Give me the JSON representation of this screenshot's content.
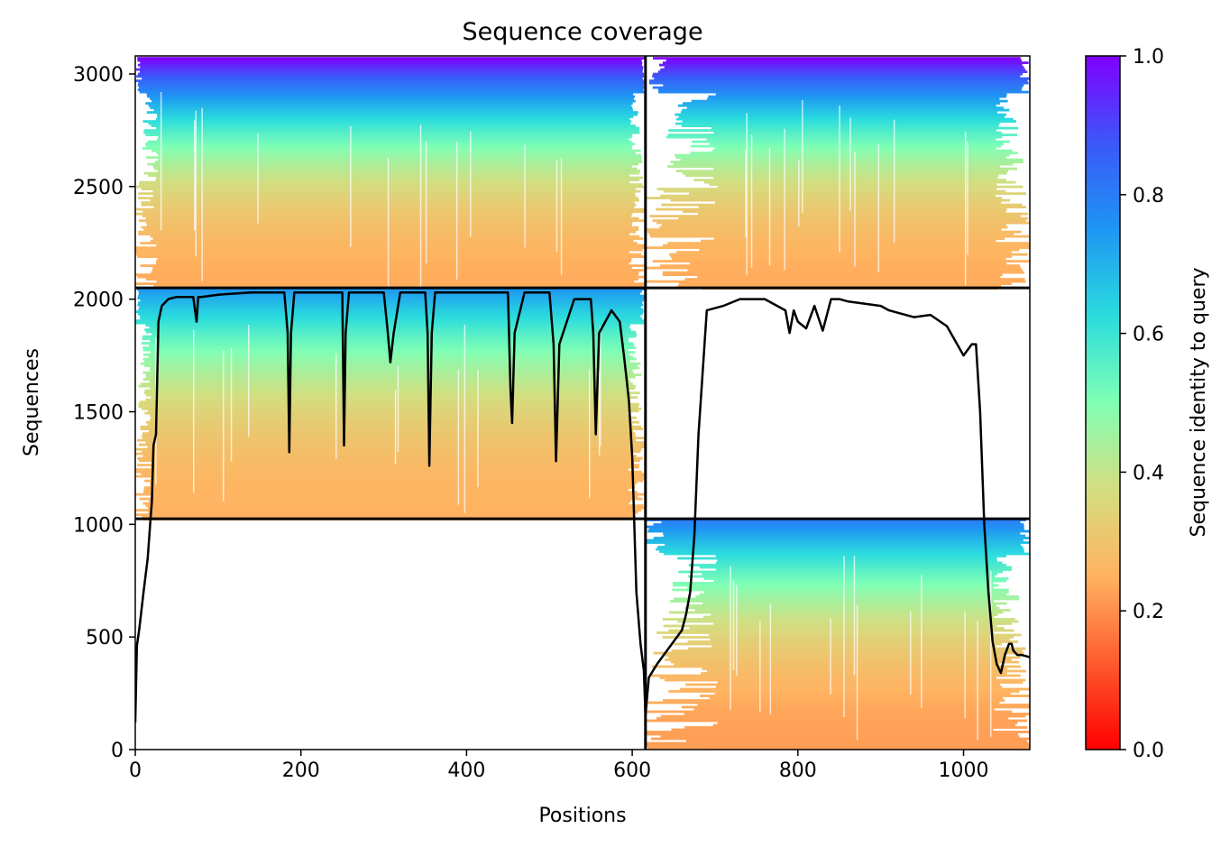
{
  "chart_data": {
    "type": "heatmap",
    "title": "Sequence coverage",
    "xlabel": "Positions",
    "ylabel": "Sequences",
    "xlim": [
      0,
      1080
    ],
    "ylim": [
      0,
      3080
    ],
    "xticks": [
      0,
      200,
      400,
      600,
      800,
      1000
    ],
    "yticks": [
      0,
      500,
      1000,
      1500,
      2000,
      2500,
      3000
    ],
    "grid": false,
    "colormap": "rainbow_r",
    "colorbar": {
      "label": "Sequence identity to query",
      "range": [
        0.0,
        1.0
      ],
      "ticks": [
        0.0,
        0.2,
        0.4,
        0.6,
        0.8,
        1.0
      ],
      "stops": [
        {
          "v": 0.0,
          "color": "#ff0000"
        },
        {
          "v": 0.125,
          "color": "#ff5a2e"
        },
        {
          "v": 0.25,
          "color": "#ffb360"
        },
        {
          "v": 0.375,
          "color": "#d4dd80"
        },
        {
          "v": 0.5,
          "color": "#80ffb4"
        },
        {
          "v": 0.625,
          "color": "#2adcdd"
        },
        {
          "v": 0.75,
          "color": "#1e96f3"
        },
        {
          "v": 0.875,
          "color": "#3c57f9"
        },
        {
          "v": 1.0,
          "color": "#8000ff"
        }
      ]
    },
    "chain_boundary_x": 616,
    "row_boundaries_y": [
      1025,
      2050
    ],
    "blocks": [
      {
        "name": "chain-A-top",
        "x0": 0,
        "x1": 616,
        "y0": 2050,
        "y1": 3075,
        "core_x0": 28,
        "core_x1": 596,
        "identity_bottom": 0.24,
        "identity_top": 1.0
      },
      {
        "name": "chain-B-top",
        "x0": 616,
        "x1": 1080,
        "y0": 2050,
        "y1": 3075,
        "core_x0": 703,
        "core_x1": 1038,
        "identity_bottom": 0.24,
        "identity_top": 1.0
      },
      {
        "name": "chain-A-middle",
        "x0": 0,
        "x1": 616,
        "y0": 1025,
        "y1": 2050,
        "core_x0": 20,
        "core_x1": 595,
        "identity_bottom": 0.25,
        "identity_top": 0.75
      },
      {
        "name": "chain-B-bottom",
        "x0": 616,
        "x1": 1080,
        "y0": 0,
        "y1": 1025,
        "core_x0": 703,
        "core_x1": 1035,
        "identity_bottom": 0.22,
        "identity_top": 0.8
      }
    ],
    "series": [
      {
        "color": "#000000",
        "x": [
          0,
          2,
          5,
          10,
          15,
          18,
          20,
          22,
          25,
          28,
          32,
          40,
          50,
          60,
          70,
          74,
          76,
          80,
          100,
          140,
          180,
          184,
          186,
          188,
          192,
          200,
          230,
          250,
          252,
          254,
          258,
          280,
          300,
          305,
          308,
          312,
          320,
          350,
          353,
          355,
          358,
          362,
          380,
          420,
          450,
          453,
          455,
          458,
          470,
          500,
          505,
          508,
          512,
          530,
          550,
          553,
          556,
          560,
          575,
          585,
          590,
          593,
          596,
          600,
          605,
          610,
          614,
          616,
          620,
          630,
          640,
          650,
          660,
          665,
          670,
          675,
          680,
          690,
          700,
          710,
          730,
          760,
          785,
          790,
          795,
          800,
          810,
          820,
          830,
          840,
          850,
          860,
          880,
          900,
          910,
          920,
          940,
          960,
          980,
          1000,
          1010,
          1015,
          1020,
          1025,
          1030,
          1035,
          1040,
          1045,
          1050,
          1055,
          1058,
          1060,
          1065,
          1070,
          1080
        ],
        "y": [
          120,
          460,
          540,
          700,
          850,
          1000,
          1100,
          1350,
          1400,
          1900,
          1970,
          2000,
          2010,
          2010,
          2010,
          1900,
          2010,
          2010,
          2020,
          2030,
          2030,
          1850,
          1320,
          1850,
          2030,
          2030,
          2030,
          2030,
          1350,
          1850,
          2030,
          2030,
          2030,
          1850,
          1720,
          1850,
          2030,
          2030,
          1850,
          1260,
          1850,
          2030,
          2030,
          2030,
          2030,
          1600,
          1450,
          1850,
          2030,
          2030,
          1800,
          1280,
          1800,
          2000,
          2000,
          1850,
          1400,
          1850,
          1950,
          1900,
          1750,
          1650,
          1550,
          1300,
          700,
          470,
          350,
          150,
          320,
          380,
          430,
          480,
          530,
          600,
          700,
          950,
          1400,
          1950,
          1960,
          1970,
          2000,
          2000,
          1950,
          1850,
          1950,
          1900,
          1870,
          1970,
          1860,
          2000,
          2000,
          1990,
          1980,
          1970,
          1950,
          1940,
          1920,
          1930,
          1880,
          1750,
          1800,
          1800,
          1500,
          1000,
          700,
          480,
          380,
          340,
          420,
          470,
          470,
          440,
          420,
          420,
          410
        ]
      }
    ]
  }
}
